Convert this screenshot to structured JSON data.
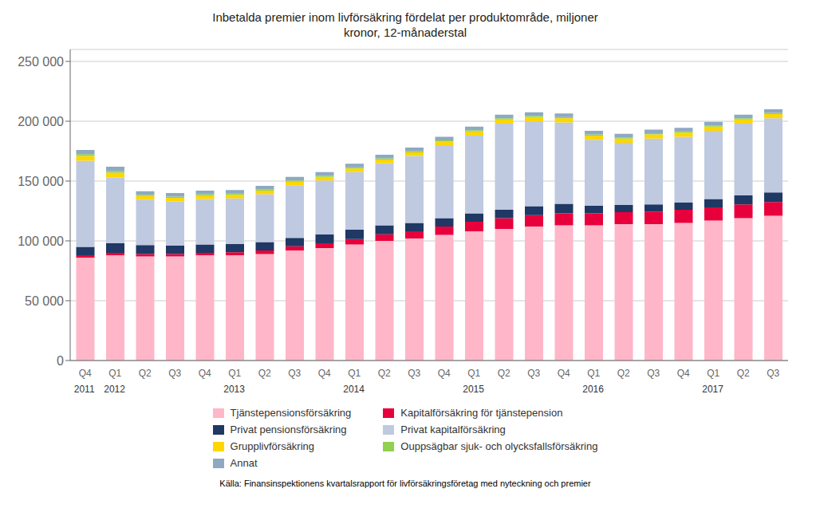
{
  "chart_data": {
    "type": "bar",
    "stacked": true,
    "title": "Inbetalda premier inom livförsäkring fördelat per produktområde, miljoner\nkronor, 12-månaderstal",
    "categories": [
      "Q4",
      "Q1",
      "Q2",
      "Q3",
      "Q4",
      "Q1",
      "Q2",
      "Q3",
      "Q4",
      "Q1",
      "Q2",
      "Q3",
      "Q4",
      "Q1",
      "Q2",
      "Q3",
      "Q4",
      "Q1",
      "Q2",
      "Q3",
      "Q4",
      "Q1",
      "Q2",
      "Q3"
    ],
    "category_groups": [
      "2011",
      "2012",
      "2012",
      "2012",
      "2012",
      "2013",
      "2013",
      "2013",
      "2013",
      "2014",
      "2014",
      "2014",
      "2014",
      "2015",
      "2015",
      "2015",
      "2015",
      "2016",
      "2016",
      "2016",
      "2016",
      "2017",
      "2017",
      "2017"
    ],
    "series": [
      {
        "name": "Tjänstepensionsförsäkring",
        "color": "#FFB6C8",
        "values": [
          86000,
          88000,
          87000,
          87000,
          88000,
          88000,
          89000,
          92000,
          94000,
          97000,
          100000,
          102000,
          105000,
          108000,
          110000,
          112000,
          113000,
          113000,
          114000,
          114000,
          115000,
          117000,
          119000,
          121000
        ]
      },
      {
        "name": "Kapitalförsäkring för tjänstepension",
        "color": "#E8003C",
        "values": [
          2000,
          2000,
          2000,
          2000,
          2000,
          2500,
          3000,
          3500,
          4000,
          4500,
          5500,
          6000,
          7000,
          8000,
          9000,
          9500,
          10000,
          10000,
          10000,
          10500,
          11000,
          11000,
          11500,
          11500
        ]
      },
      {
        "name": "Privat pensionsförsäkring",
        "color": "#1F3864",
        "values": [
          7000,
          8000,
          7500,
          7000,
          7000,
          7000,
          7000,
          7000,
          7500,
          8000,
          7500,
          7000,
          7000,
          7000,
          7000,
          7500,
          8000,
          6500,
          6000,
          6000,
          6000,
          7000,
          7500,
          8000
        ]
      },
      {
        "name": "Privat kapitalförsäkring",
        "color": "#BFC9E0",
        "values": [
          72000,
          55000,
          38000,
          37000,
          38000,
          38000,
          40000,
          44000,
          45000,
          48000,
          52000,
          56000,
          61000,
          65000,
          72000,
          71000,
          68000,
          55000,
          52000,
          55000,
          55000,
          57000,
          60000,
          62000
        ]
      },
      {
        "name": "Grupplivförsäkring",
        "color": "#FFD700",
        "values": [
          4000,
          4000,
          3000,
          3000,
          3000,
          3000,
          3000,
          3000,
          3000,
          3000,
          3000,
          3000,
          3000,
          3500,
          3500,
          3500,
          3500,
          3500,
          3500,
          3500,
          3500,
          3500,
          3500,
          3500
        ]
      },
      {
        "name": "Ouppsägbar sjuk- och olycksfallsförsäkring",
        "color": "#92D050",
        "values": [
          1500,
          1500,
          1000,
          1000,
          1000,
          1000,
          1000,
          1000,
          1000,
          1000,
          1000,
          1000,
          1000,
          1000,
          1000,
          1000,
          1000,
          1000,
          1000,
          1000,
          1000,
          1000,
          1000,
          1000
        ]
      },
      {
        "name": "Annat",
        "color": "#8EA9C1",
        "values": [
          3500,
          3500,
          3000,
          3000,
          3000,
          3000,
          3000,
          3000,
          3000,
          3000,
          3000,
          3000,
          3000,
          3000,
          3000,
          3000,
          3000,
          3000,
          3000,
          3000,
          3000,
          3000,
          3000,
          3000
        ]
      }
    ],
    "ylim": [
      0,
      260000
    ],
    "yticks": [
      0,
      {
        "value": 50000,
        "label": "50 000"
      },
      {
        "value": 100000,
        "label": "100 000"
      },
      {
        "value": 150000,
        "label": "150 000"
      },
      {
        "value": 200000,
        "label": "200 000"
      },
      {
        "value": 250000,
        "label": "250 000"
      }
    ],
    "grid": true,
    "legend": "bottom",
    "annotations": [
      "Källa: Finansinspektionens kvartalsrapport för livförsäkringsföretag med nyteckning och premier"
    ]
  }
}
